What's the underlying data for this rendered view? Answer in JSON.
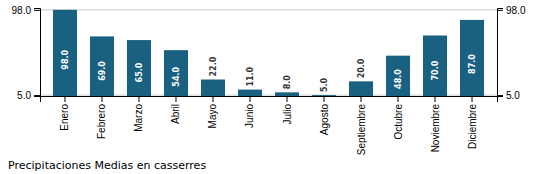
{
  "chart_data": {
    "type": "bar",
    "title": "Precipitaciones Medias en casserres",
    "categories": [
      "Enero",
      "Febrero",
      "Marzo",
      "Abril",
      "Mayo",
      "Junio",
      "Julio",
      "Agosto",
      "Septiembre",
      "Octubre",
      "Noviembre",
      "Diciembre"
    ],
    "values": [
      98,
      69,
      65,
      54,
      22,
      11,
      8,
      5,
      20,
      48,
      70,
      87
    ],
    "value_labels": [
      "98.0",
      "69.0",
      "65.0",
      "54.0",
      "22.0",
      "11.0",
      "8.0",
      "5.0",
      "20.0",
      "48.0",
      "70.0",
      "87.0"
    ],
    "data_labels": true,
    "color": "#1a6080",
    "ylim": [
      4,
      100
    ],
    "yticks": [
      {
        "value": 5,
        "label": "5.0"
      },
      {
        "value": 98,
        "label": "98.0"
      }
    ],
    "y2lim": [
      4,
      100
    ],
    "y2ticks": [
      {
        "value": 5,
        "label": "5.0"
      },
      {
        "value": 98,
        "label": "98.0"
      }
    ],
    "grid": true
  }
}
